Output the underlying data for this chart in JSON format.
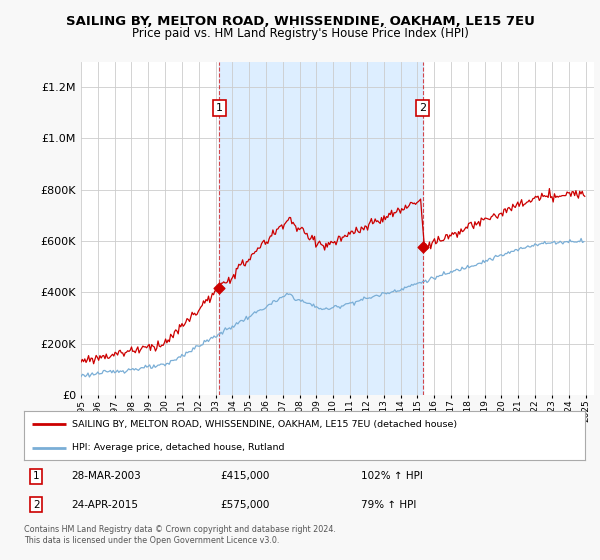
{
  "title": "SAILING BY, MELTON ROAD, WHISSENDINE, OAKHAM, LE15 7EU",
  "subtitle": "Price paid vs. HM Land Registry's House Price Index (HPI)",
  "red_label": "SAILING BY, MELTON ROAD, WHISSENDINE, OAKHAM, LE15 7EU (detached house)",
  "blue_label": "HPI: Average price, detached house, Rutland",
  "sale1_x": 2003.23,
  "sale1_date": "28-MAR-2003",
  "sale1_price": "£415,000",
  "sale1_hpi": "102% ↑ HPI",
  "sale1_val": 415000,
  "sale2_x": 2015.31,
  "sale2_date": "24-APR-2015",
  "sale2_price": "£575,000",
  "sale2_hpi": "79% ↑ HPI",
  "sale2_val": 575000,
  "copyright": "Contains HM Land Registry data © Crown copyright and database right 2024.\nThis data is licensed under the Open Government Licence v3.0.",
  "ylim_max": 1300000,
  "xlim_min": 1995.0,
  "xlim_max": 2025.5,
  "red_color": "#cc0000",
  "blue_color": "#7aaed6",
  "shade_color": "#ddeeff",
  "bg_color": "#f8f8f8",
  "plot_bg": "#ffffff",
  "grid_color": "#cccccc",
  "title_fontsize": 9.5,
  "subtitle_fontsize": 8.5
}
